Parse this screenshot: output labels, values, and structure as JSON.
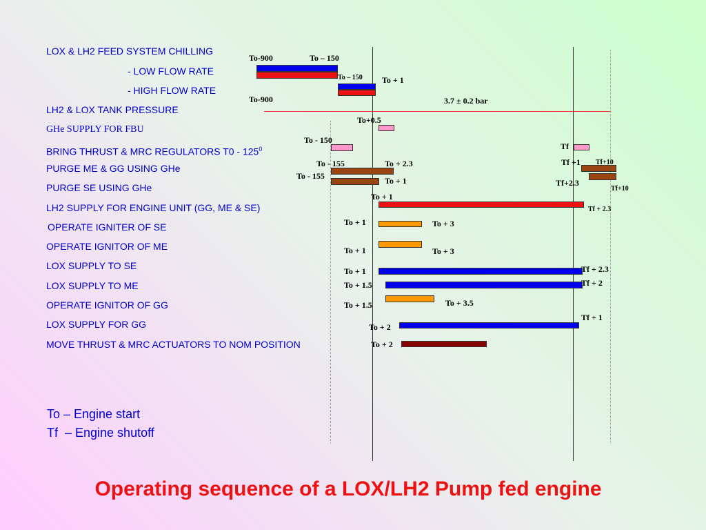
{
  "title": "Operating sequence of a LOX/LH2 Pump fed engine",
  "legend": {
    "to": "To – Engine start",
    "tf": "Tf  – Engine shutoff"
  },
  "colors": {
    "blue": "#0000ee",
    "red": "#ee1111",
    "pink": "#ff99cc",
    "brown": "#994411",
    "orange": "#ff9900",
    "darkred": "#880000",
    "label": "#0000cc"
  },
  "rows": [
    {
      "label": "LOX & LH2 FEED SYSTEM CHILLING"
    },
    {
      "label": "- LOW FLOW RATE"
    },
    {
      "label": "- HIGH FLOW RATE"
    },
    {
      "label": "LH2 & LOX TANK PRESSURE"
    },
    {
      "label": "GHe SUPPLY FOR FBU"
    },
    {
      "label": "BRING THRUST & MRC REGULATORS T0 - 125",
      "sup": "0"
    },
    {
      "label": "PURGE ME & GG USING GHe"
    },
    {
      "label": "PURGE SE USING GHe"
    },
    {
      "label": "LH2 SUPPLY FOR ENGINE UNIT (GG, ME & SE)"
    },
    {
      "label": "OPERATE IGNITER OF SE"
    },
    {
      "label": "OPERATE IGNITOR OF ME"
    },
    {
      "label": "LOX SUPPLY TO SE"
    },
    {
      "label": "LOX SUPPLY TO ME"
    },
    {
      "label": "OPERATE IGNITOR OF GG"
    },
    {
      "label": "LOX SUPPLY FOR GG"
    },
    {
      "label": "MOVE THRUST & MRC ACTUATORS TO NOM POSITION"
    }
  ],
  "annotations": [
    "To-900",
    "To – 150",
    "To – 150",
    "To + 1",
    "To-900",
    "3.7 ± 0.2 bar",
    "To+0.5",
    "To - 150",
    "Tf",
    "To - 155",
    "To + 2.3",
    "Tf +1",
    "Tf+10",
    "To - 155",
    "To + 1",
    "Tf+2.3",
    "Tf+10",
    "To + 1",
    "Tf + 2.3",
    "To + 1",
    "To + 3",
    "To + 1",
    "To + 3",
    "To + 1",
    "Tf + 2.3",
    "To + 1.5",
    "Tf + 2",
    "To + 1.5",
    "To + 3.5",
    "Tf + 1",
    "To + 2",
    "To + 2"
  ]
}
